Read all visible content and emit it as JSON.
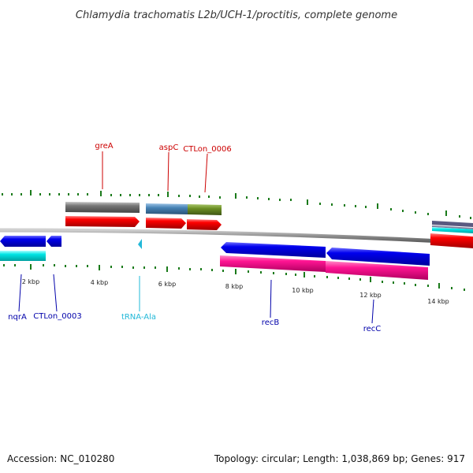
{
  "title": "Chlamydia trachomatis L2b/UCH-1/proctitis, complete genome",
  "footer": {
    "accession": "Accession: NC_010280",
    "summary": "Topology: circular; Length: 1,038,869 bp; Genes: 917"
  },
  "axis": {
    "unit": "kbp",
    "ticks": [
      "2 kbp",
      "4 kbp",
      "6 kbp",
      "8 kbp",
      "10 kbp",
      "12 kbp",
      "14 kbp"
    ]
  },
  "gene_labels": {
    "forward": [
      "greA",
      "aspC",
      "CTLon_0006"
    ],
    "reverse": [
      "nqrA",
      "CTLon_0003",
      "tRNA-Ala",
      "recB",
      "recC"
    ]
  },
  "colors": {
    "backbone": "#8a8a8a",
    "forward_label": "#cc0000",
    "reverse_label": "#0000aa",
    "trna_label": "#22b8d8",
    "minor_tick": "#1a7a1a",
    "forward_cds": "#ff0000",
    "reverse_cds": "#0000ee",
    "rna": "#00e5e5",
    "reverse_feature": "#ff1493",
    "grey_feature": "#666666",
    "steel_feature": "#4682b4",
    "olive_feature": "#6b8e23"
  }
}
